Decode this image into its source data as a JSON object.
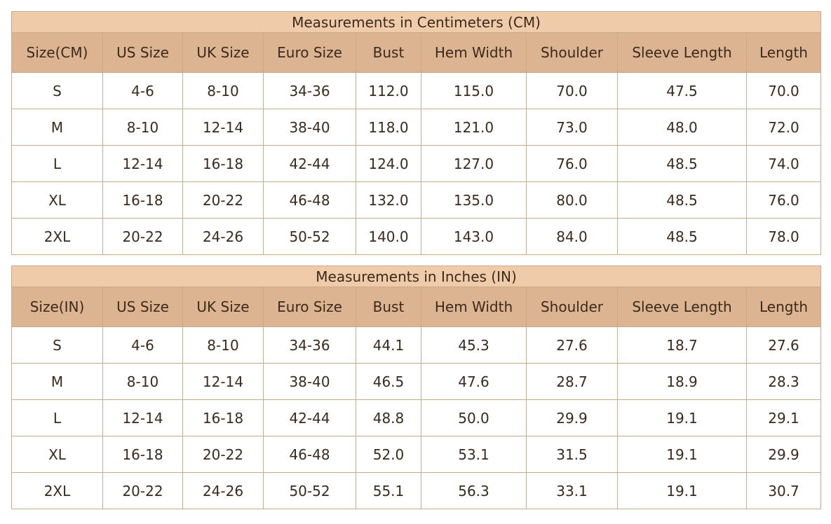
{
  "tables": [
    {
      "title": "Measurements in Centimeters (CM)",
      "headers": [
        "Size(CM)",
        "US Size",
        "UK Size",
        "Euro Size",
        "Bust",
        "Hem Width",
        "Shoulder",
        "Sleeve Length",
        "Length"
      ],
      "rows": [
        [
          "S",
          "4-6",
          "8-10",
          "34-36",
          "112.0",
          "115.0",
          "70.0",
          "47.5",
          "70.0"
        ],
        [
          "M",
          "8-10",
          "12-14",
          "38-40",
          "118.0",
          "121.0",
          "73.0",
          "48.0",
          "72.0"
        ],
        [
          "L",
          "12-14",
          "16-18",
          "42-44",
          "124.0",
          "127.0",
          "76.0",
          "48.5",
          "74.0"
        ],
        [
          "XL",
          "16-18",
          "20-22",
          "46-48",
          "132.0",
          "135.0",
          "80.0",
          "48.5",
          "76.0"
        ],
        [
          "2XL",
          "20-22",
          "24-26",
          "50-52",
          "140.0",
          "143.0",
          "84.0",
          "48.5",
          "78.0"
        ]
      ]
    },
    {
      "title": "Measurements in Inches (IN)",
      "headers": [
        "Size(IN)",
        "US Size",
        "UK Size",
        "Euro Size",
        "Bust",
        "Hem Width",
        "Shoulder",
        "Sleeve Length",
        "Length"
      ],
      "rows": [
        [
          "S",
          "4-6",
          "8-10",
          "34-36",
          "44.1",
          "45.3",
          "27.6",
          "18.7",
          "27.6"
        ],
        [
          "M",
          "8-10",
          "12-14",
          "38-40",
          "46.5",
          "47.6",
          "28.7",
          "18.9",
          "28.3"
        ],
        [
          "L",
          "12-14",
          "16-18",
          "42-44",
          "48.8",
          "50.0",
          "29.9",
          "19.1",
          "29.1"
        ],
        [
          "XL",
          "16-18",
          "20-22",
          "46-48",
          "52.0",
          "53.1",
          "31.5",
          "19.1",
          "29.9"
        ],
        [
          "2XL",
          "20-22",
          "24-26",
          "50-52",
          "55.1",
          "56.3",
          "33.1",
          "19.1",
          "30.7"
        ]
      ]
    }
  ]
}
